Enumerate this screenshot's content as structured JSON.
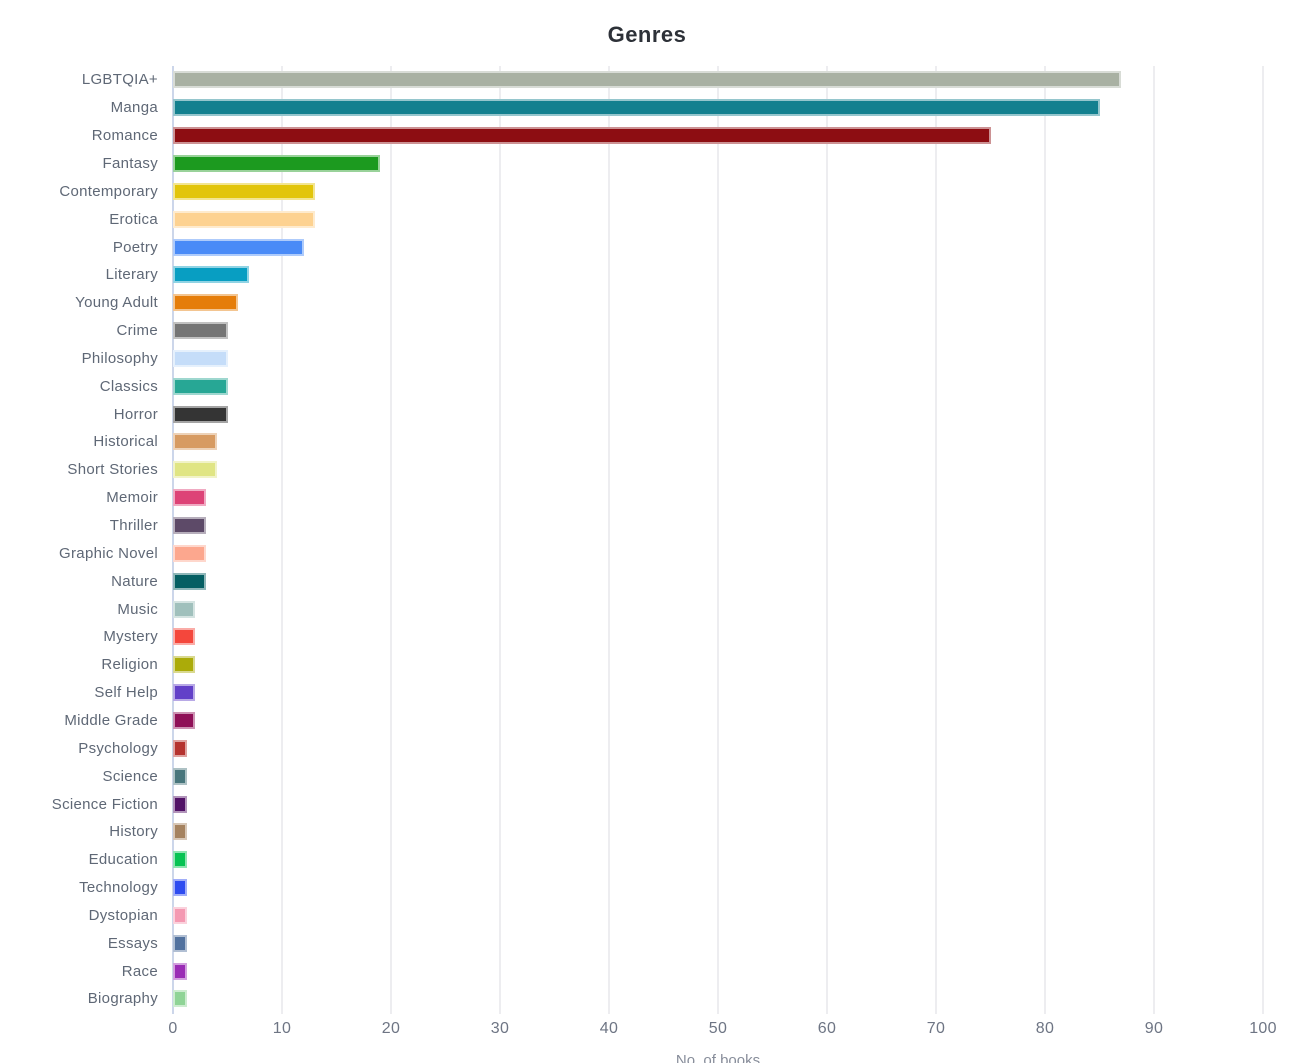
{
  "chart_data": {
    "type": "bar",
    "orientation": "horizontal",
    "title": "Genres",
    "xlabel": "No. of books",
    "xlim": [
      0,
      100
    ],
    "xticks": [
      0,
      10,
      20,
      30,
      40,
      50,
      60,
      70,
      80,
      90,
      100
    ],
    "grid": "vertical",
    "legend": "none",
    "categories": [
      "LGBTQIA+",
      "Manga",
      "Romance",
      "Fantasy",
      "Contemporary",
      "Erotica",
      "Poetry",
      "Literary",
      "Young Adult",
      "Crime",
      "Philosophy",
      "Classics",
      "Horror",
      "Historical",
      "Short Stories",
      "Memoir",
      "Thriller",
      "Graphic Novel",
      "Nature",
      "Music",
      "Mystery",
      "Religion",
      "Self Help",
      "Middle Grade",
      "Psychology",
      "Science",
      "Science Fiction",
      "History",
      "Education",
      "Technology",
      "Dystopian",
      "Essays",
      "Race",
      "Biography"
    ],
    "values": [
      87,
      85,
      75,
      19,
      13,
      13,
      12,
      7,
      6,
      5,
      5,
      5,
      5,
      4,
      4,
      3,
      3,
      3,
      3,
      2,
      2,
      2,
      2,
      2,
      1.3,
      1.3,
      1.3,
      1.3,
      1.3,
      1.3,
      1.3,
      1.3,
      1.3,
      1.3
    ],
    "colors": [
      "#a9b1a3",
      "#13808f",
      "#8d0d12",
      "#1c9a1f",
      "#e2c50a",
      "#fdd291",
      "#4a8bf7",
      "#089ec2",
      "#e57d0a",
      "#757575",
      "#c5ddf9",
      "#27a795",
      "#343434",
      "#d79b62",
      "#e0e584",
      "#dd4377",
      "#5d4a68",
      "#fca78e",
      "#055f63",
      "#a0c0bc",
      "#f4473c",
      "#abab09",
      "#6240c8",
      "#8f1057",
      "#b5332f",
      "#48767c",
      "#511266",
      "#a5825f",
      "#06c353",
      "#2e4cf0",
      "#f499b2",
      "#51719e",
      "#9a2cb5",
      "#8fd496"
    ]
  },
  "styles": {
    "title_color": "#2d3138",
    "category_label_color": "#5f6876",
    "tick_label_color": "#6e7584",
    "gridline_color": "#ededf0",
    "y_axis_line_color": "#ccd6ea",
    "background": "#ffffff"
  }
}
